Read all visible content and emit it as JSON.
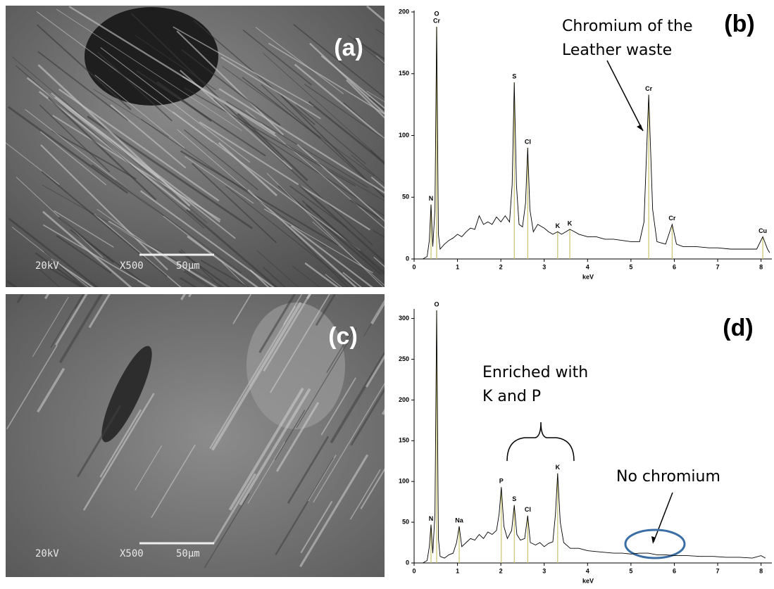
{
  "images": [
    {
      "label": "(a)",
      "voltage": "20kV",
      "magnification": "X500",
      "scale": "50µm"
    },
    {
      "label": "(c)",
      "voltage": "20kV",
      "magnification": "X500",
      "scale": "50µm"
    }
  ],
  "chart_data": [
    {
      "type": "line",
      "panel_label": "(b)",
      "x_label": "keV",
      "color": "#000000",
      "peak_color": "#c9c36a",
      "notes": [
        "Chromium of the",
        "Leather waste"
      ],
      "xlim": [
        0,
        8.25
      ],
      "xticks": [
        0,
        1,
        2,
        3,
        4,
        5,
        6,
        7,
        8
      ],
      "ylim": [
        0,
        200
      ],
      "yticks": [
        0,
        50,
        100,
        150,
        200
      ],
      "x": [
        0.2,
        0.3,
        0.35,
        0.39,
        0.43,
        0.48,
        0.52,
        0.56,
        0.6,
        0.7,
        0.8,
        0.9,
        1.0,
        1.1,
        1.2,
        1.3,
        1.4,
        1.5,
        1.6,
        1.7,
        1.8,
        1.9,
        2.0,
        2.1,
        2.2,
        2.26,
        2.31,
        2.36,
        2.42,
        2.5,
        2.57,
        2.62,
        2.67,
        2.75,
        2.85,
        3.0,
        3.1,
        3.2,
        3.31,
        3.4,
        3.5,
        3.59,
        3.7,
        3.8,
        4.0,
        4.2,
        4.4,
        4.6,
        4.8,
        5.0,
        5.2,
        5.3,
        5.41,
        5.5,
        5.6,
        5.8,
        5.95,
        6.05,
        6.2,
        6.5,
        6.8,
        7.0,
        7.3,
        7.6,
        7.9,
        8.04,
        8.15,
        8.2
      ],
      "values": [
        0,
        2,
        15,
        44,
        10,
        40,
        188,
        20,
        8,
        12,
        15,
        17,
        20,
        18,
        22,
        25,
        24,
        35,
        28,
        30,
        28,
        34,
        30,
        35,
        30,
        60,
        143,
        60,
        28,
        26,
        45,
        90,
        40,
        22,
        28,
        25,
        22,
        20,
        22,
        20,
        22,
        24,
        22,
        20,
        18,
        18,
        16,
        16,
        15,
        14,
        14,
        30,
        133,
        40,
        14,
        12,
        28,
        12,
        10,
        10,
        9,
        9,
        8,
        8,
        8,
        18,
        8,
        5
      ],
      "peaks": [
        {
          "x": 0.39,
          "y": 44,
          "label": "N"
        },
        {
          "x": 0.52,
          "y": 188,
          "label": "O"
        },
        {
          "x": 0.52,
          "y": 188,
          "label": "Cr"
        },
        {
          "x": 2.31,
          "y": 143,
          "label": "S"
        },
        {
          "x": 2.62,
          "y": 90,
          "label": "Cl"
        },
        {
          "x": 3.31,
          "y": 22,
          "label": "K"
        },
        {
          "x": 3.59,
          "y": 24,
          "label": "K"
        },
        {
          "x": 5.41,
          "y": 133,
          "label": "Cr"
        },
        {
          "x": 5.95,
          "y": 28,
          "label": "Cr"
        },
        {
          "x": 8.04,
          "y": 18,
          "label": "Cu"
        }
      ]
    },
    {
      "type": "line",
      "panel_label": "(d)",
      "x_label": "keV",
      "color": "#000000",
      "peak_color": "#c9c36a",
      "notes": [
        "Enriched with",
        "K and P",
        "No chromium"
      ],
      "xlim": [
        0,
        8.25
      ],
      "xticks": [
        0,
        1,
        2,
        3,
        4,
        5,
        6,
        7,
        8
      ],
      "ylim": [
        0,
        310
      ],
      "yticks": [
        0,
        50,
        100,
        150,
        200,
        250,
        300
      ],
      "x": [
        0.2,
        0.3,
        0.35,
        0.39,
        0.43,
        0.48,
        0.52,
        0.56,
        0.6,
        0.7,
        0.8,
        0.9,
        0.98,
        1.04,
        1.1,
        1.2,
        1.3,
        1.4,
        1.5,
        1.6,
        1.7,
        1.8,
        1.9,
        1.96,
        2.01,
        2.07,
        2.15,
        2.25,
        2.31,
        2.37,
        2.45,
        2.55,
        2.62,
        2.68,
        2.8,
        2.9,
        3.0,
        3.1,
        3.2,
        3.26,
        3.31,
        3.37,
        3.45,
        3.6,
        3.8,
        4.0,
        4.2,
        4.4,
        4.6,
        4.8,
        5.0,
        5.2,
        5.4,
        5.6,
        5.8,
        6.0,
        6.3,
        6.6,
        6.9,
        7.2,
        7.5,
        7.8,
        8.0,
        8.1
      ],
      "values": [
        0,
        3,
        20,
        47,
        12,
        60,
        310,
        30,
        8,
        6,
        10,
        12,
        25,
        45,
        20,
        25,
        30,
        28,
        35,
        30,
        38,
        35,
        40,
        60,
        93,
        45,
        30,
        40,
        71,
        35,
        28,
        30,
        58,
        25,
        22,
        25,
        20,
        24,
        26,
        60,
        110,
        50,
        25,
        18,
        18,
        15,
        14,
        13,
        12,
        12,
        11,
        12,
        12,
        10,
        10,
        9,
        9,
        8,
        8,
        7,
        7,
        6,
        9,
        6
      ],
      "peaks": [
        {
          "x": 0.39,
          "y": 47,
          "label": "N"
        },
        {
          "x": 0.52,
          "y": 310,
          "label": "O"
        },
        {
          "x": 1.04,
          "y": 45,
          "label": "Na"
        },
        {
          "x": 2.01,
          "y": 93,
          "label": "P"
        },
        {
          "x": 2.31,
          "y": 71,
          "label": "S"
        },
        {
          "x": 2.62,
          "y": 58,
          "label": "Cl"
        },
        {
          "x": 3.31,
          "y": 110,
          "label": "K"
        }
      ]
    }
  ]
}
